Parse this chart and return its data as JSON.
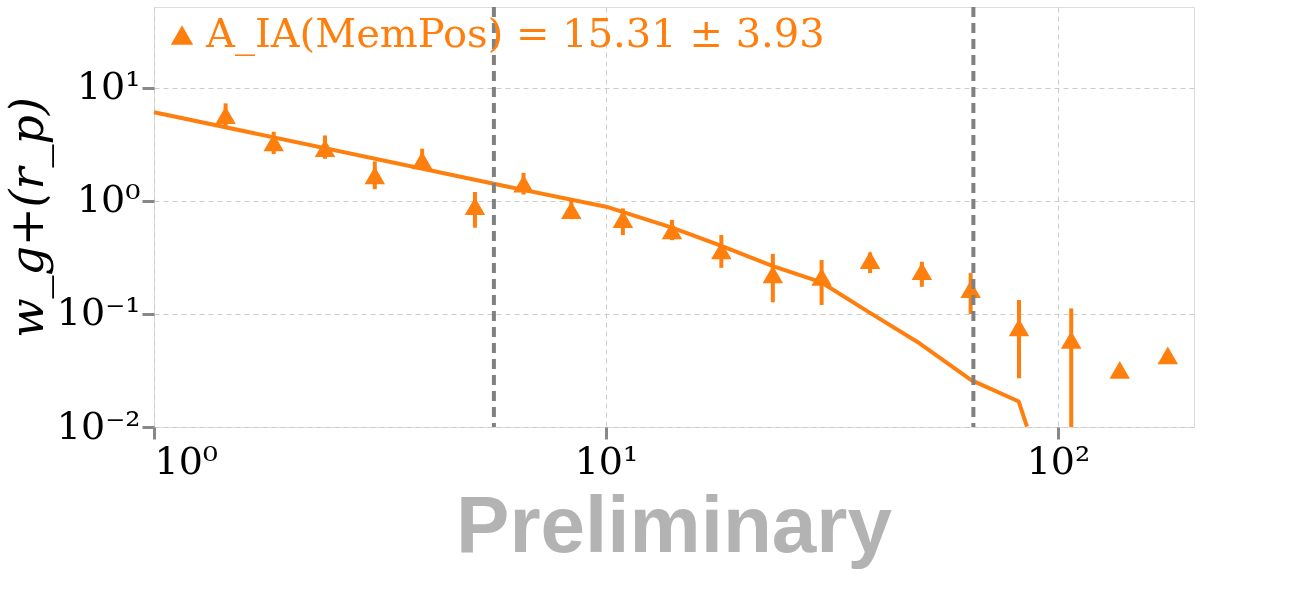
{
  "chart_data": {
    "type": "scatter",
    "ylabel": "w_g+(r_p)",
    "x": [
      1.44,
      1.84,
      2.39,
      3.08,
      3.92,
      5.13,
      6.57,
      8.38,
      10.9,
      14.0,
      18.0,
      23.4,
      30.0,
      38.4,
      50.0,
      64.1,
      82.0,
      107,
      137,
      175
    ],
    "series": [
      {
        "name": "A_IA(MemPos) = 15.31 ± 3.93",
        "color": "#ff7f0e",
        "marker": "triangle",
        "values": [
          5.74,
          3.3,
          2.93,
          1.68,
          2.28,
          0.9,
          1.42,
          0.83,
          0.69,
          0.55,
          0.365,
          0.224,
          0.213,
          0.3,
          0.24,
          0.166,
          0.076,
          0.059,
          0.032,
          0.043
        ],
        "errors": [
          [
            4.5,
            7.3
          ],
          [
            2.6,
            4.1
          ],
          [
            2.36,
            3.8
          ],
          [
            1.27,
            2.24
          ],
          [
            1.9,
            2.9
          ],
          [
            0.58,
            1.2
          ],
          [
            1.14,
            1.77
          ],
          [
            0.69,
            1.05
          ],
          [
            0.5,
            0.86
          ],
          [
            0.45,
            0.68
          ],
          [
            0.256,
            0.5
          ],
          [
            0.127,
            0.34
          ],
          [
            0.12,
            0.3
          ],
          [
            0.23,
            0.35
          ],
          [
            0.174,
            0.29
          ],
          [
            0.1,
            0.23
          ],
          [
            0.027,
            0.133
          ],
          [
            0.01,
            0.112
          ],
          null,
          null
        ]
      },
      {
        "type": "line",
        "color": "#ff7f0e",
        "line_style": "solid",
        "marker": "none",
        "x": [
          1,
          6.0,
          10,
          14,
          18,
          23.4,
          30,
          38,
          49.4,
          64.3,
          81.9,
          85.4
        ],
        "values": [
          6.1,
          1.35,
          0.89,
          0.58,
          0.4,
          0.265,
          0.19,
          0.105,
          0.055,
          0.026,
          0.0168,
          0.0101
        ]
      }
    ],
    "xlim": [
      1,
      200
    ],
    "ylim": [
      0.01,
      52
    ],
    "xticks": [
      {
        "value": 1,
        "label": "10⁰"
      },
      {
        "value": 10,
        "label": "10¹"
      },
      {
        "value": 100,
        "label": "10²"
      }
    ],
    "yticks": [
      {
        "value": 0.01,
        "label": "10⁻²"
      },
      {
        "value": 0.1,
        "label": "10⁻¹"
      },
      {
        "value": 1,
        "label": "10⁰"
      },
      {
        "value": 10,
        "label": "10¹"
      }
    ],
    "log": "xy",
    "grid": true,
    "legend": "top left",
    "ref_lines": [
      {
        "axis": "x",
        "value": 5.65,
        "color": "#808080",
        "line_style": "dashed"
      },
      {
        "axis": "x",
        "value": 65,
        "color": "#808080",
        "line_style": "dashed"
      }
    ],
    "annotations": [
      "Preliminary"
    ]
  }
}
